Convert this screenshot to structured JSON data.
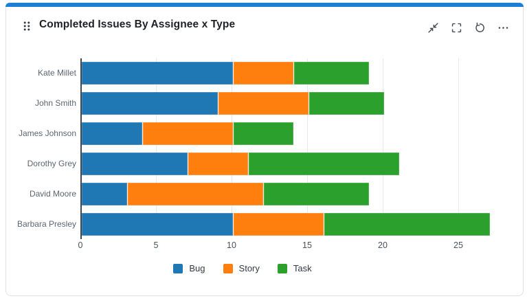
{
  "header": {
    "title": "Completed Issues By Assignee x Type",
    "icons": [
      "collapse-icon",
      "fullscreen-icon",
      "refresh-icon",
      "more-options-icon"
    ]
  },
  "colors": {
    "accent": "#1c7ed6",
    "card_border": "#dee2e6",
    "axis_line": "#3f4850",
    "gridline": "#e8e8e8",
    "bug": "#1f77b4",
    "story": "#ff7f0e",
    "task": "#2ca02c"
  },
  "chart_data": {
    "type": "bar",
    "orientation": "horizontal",
    "stacked": true,
    "title": "Completed Issues By Assignee x Type",
    "categories": [
      "Kate Millet",
      "John Smith",
      "James Johnson",
      "Dorothy Grey",
      "David Moore",
      "Barbara Presley"
    ],
    "series": [
      {
        "name": "Bug",
        "color": "#1f77b4",
        "values": [
          10,
          9,
          4,
          7,
          3,
          10
        ]
      },
      {
        "name": "Story",
        "color": "#ff7f0e",
        "values": [
          4,
          6,
          6,
          4,
          9,
          6
        ]
      },
      {
        "name": "Task",
        "color": "#2ca02c",
        "values": [
          5,
          5,
          4,
          10,
          7,
          11
        ]
      }
    ],
    "totals": [
      19,
      20,
      14,
      21,
      19,
      27
    ],
    "x_ticks": [
      0,
      5,
      10,
      15,
      20,
      25
    ],
    "xlim": [
      0,
      28
    ],
    "xlabel": "",
    "ylabel": "",
    "grid": "vertical",
    "legend_position": "bottom"
  }
}
